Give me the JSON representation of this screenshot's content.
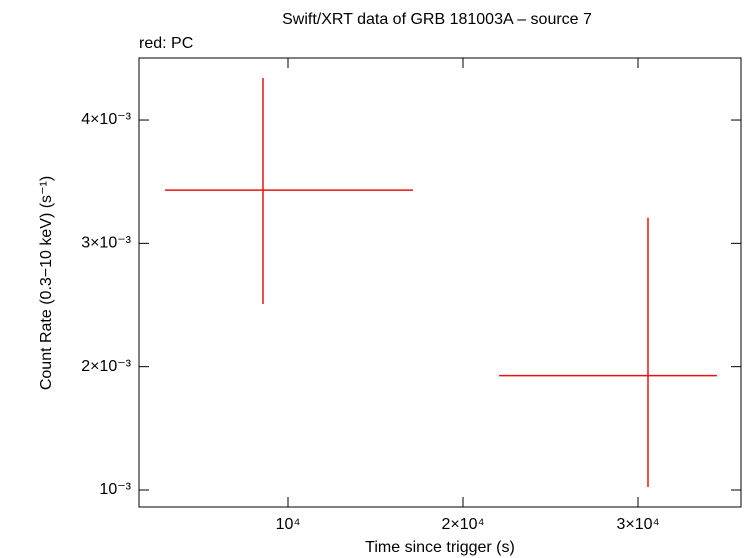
{
  "chart_data": {
    "type": "errorbar",
    "title": "Swift/XRT data of GRB 181003A – source 7",
    "annotation": "red: PC",
    "x_label": "Time since trigger (s)",
    "y_label": "Count Rate (0.3−10 keV) (s⁻¹)",
    "series": [
      {
        "color": "#e8140f",
        "x": [
          8571,
          30571
        ],
        "xerr_minus": [
          5600,
          8514
        ],
        "xerr_plus": [
          8572,
          3943
        ],
        "values": [
          0.003432,
          0.001927
        ],
        "yerr_minus": [
          0.000924,
          0.000903
        ],
        "yerr_plus": [
          0.000909,
          0.001281
        ]
      }
    ],
    "xlim": [
      1486,
      35886
    ],
    "ylim": [
      0.000862,
      0.004503
    ],
    "xticks": [
      {
        "value": 10000,
        "label": "10⁴"
      },
      {
        "value": 20000,
        "label": "2×10⁴"
      },
      {
        "value": 30000,
        "label": "3×10⁴"
      }
    ],
    "yticks": [
      {
        "value": 0.001,
        "label": "10⁻³"
      },
      {
        "value": 0.002,
        "label": "2×10⁻³"
      },
      {
        "value": 0.003,
        "label": "3×10⁻³"
      },
      {
        "value": 0.004,
        "label": "4×10⁻³"
      }
    ]
  }
}
